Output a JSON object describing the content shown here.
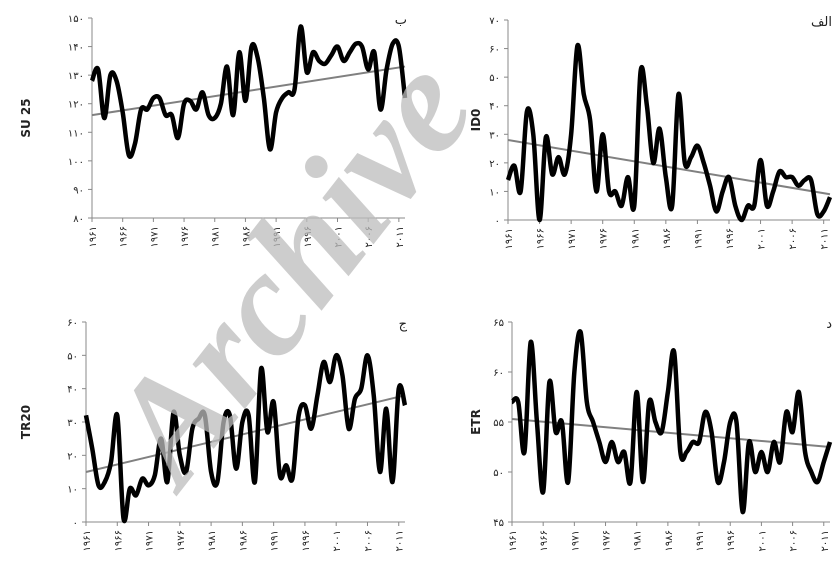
{
  "watermark": "Archive",
  "chart_data": [
    {
      "type": "line",
      "panel_label": "ب",
      "y_label": "SU 25",
      "x": [
        1961,
        1962,
        1963,
        1964,
        1965,
        1966,
        1967,
        1968,
        1969,
        1970,
        1971,
        1972,
        1973,
        1974,
        1975,
        1976,
        1977,
        1978,
        1979,
        1980,
        1981,
        1982,
        1983,
        1984,
        1985,
        1986,
        1987,
        1988,
        1989,
        1990,
        1991,
        1992,
        1993,
        1994,
        1995,
        1996,
        1997,
        1998,
        1999,
        2000,
        2001,
        2002,
        2003,
        2004,
        2005,
        2006,
        2007,
        2008,
        2009,
        2010,
        2011,
        2012
      ],
      "series": [
        {
          "color": "#000000",
          "values": [
            128,
            132,
            115,
            130,
            128,
            117,
            102,
            106,
            118,
            118,
            122,
            122,
            116,
            116,
            108,
            120,
            121,
            118,
            124,
            116,
            115,
            120,
            133,
            116,
            138,
            121,
            140,
            136,
            122,
            104,
            117,
            122,
            124,
            125,
            147,
            131,
            138,
            135,
            134,
            137,
            140,
            135,
            138,
            141,
            140,
            132,
            138,
            118,
            132,
            141,
            140,
            122
          ]
        }
      ],
      "trend": {
        "x": [
          1961,
          2012
        ],
        "values": [
          116,
          133
        ],
        "color": "#808080"
      },
      "xlim": [
        1961,
        2012
      ],
      "ylim": [
        80,
        150
      ],
      "xticks": [
        {
          "value": 1961,
          "label": "۱۹۶۱"
        },
        {
          "value": 1966,
          "label": "۱۹۶۶"
        },
        {
          "value": 1971,
          "label": "۱۹۷۱"
        },
        {
          "value": 1976,
          "label": "۱۹۷۶"
        },
        {
          "value": 1981,
          "label": "۱۹۸۱"
        },
        {
          "value": 1986,
          "label": "۱۹۸۶"
        },
        {
          "value": 1991,
          "label": "۱۹۹۱"
        },
        {
          "value": 1996,
          "label": "۱۹۹۶"
        },
        {
          "value": 2001,
          "label": "۲۰۰۱"
        },
        {
          "value": 2006,
          "label": "۲۰۰۶"
        },
        {
          "value": 2011,
          "label": "۲۰۱۱"
        }
      ],
      "yticks": [
        {
          "value": 80,
          "label": "۸۰"
        },
        {
          "value": 90,
          "label": "۹۰"
        },
        {
          "value": 100,
          "label": "۱۰۰"
        },
        {
          "value": 110,
          "label": "۱۱۰"
        },
        {
          "value": 120,
          "label": "۱۲۰"
        },
        {
          "value": 130,
          "label": "۱۳۰"
        },
        {
          "value": 140,
          "label": "۱۴۰"
        },
        {
          "value": 150,
          "label": "۱۵۰"
        }
      ]
    },
    {
      "type": "line",
      "panel_label": "الف",
      "y_label": "ID0",
      "x": [
        1961,
        1962,
        1963,
        1964,
        1965,
        1966,
        1967,
        1968,
        1969,
        1970,
        1971,
        1972,
        1973,
        1974,
        1975,
        1976,
        1977,
        1978,
        1979,
        1980,
        1981,
        1982,
        1983,
        1984,
        1985,
        1986,
        1987,
        1988,
        1989,
        1990,
        1991,
        1992,
        1993,
        1994,
        1995,
        1996,
        1997,
        1998,
        1999,
        2000,
        2001,
        2002,
        2003,
        2004,
        2005,
        2006,
        2007,
        2008,
        2009,
        2010,
        2011,
        2012
      ],
      "series": [
        {
          "color": "#000000",
          "values": [
            14,
            19,
            10,
            38,
            30,
            0,
            29,
            16,
            22,
            16,
            30,
            61,
            44,
            35,
            10,
            30,
            10,
            10,
            5,
            15,
            5,
            52,
            40,
            20,
            32,
            15,
            5,
            44,
            20,
            22,
            26,
            20,
            12,
            3,
            10,
            15,
            5,
            0,
            5,
            5,
            21,
            5,
            10,
            17,
            15,
            15,
            12,
            14,
            14,
            2,
            3,
            8
          ]
        }
      ],
      "trend": {
        "x": [
          1961,
          2012
        ],
        "values": [
          28,
          9
        ],
        "color": "#808080"
      },
      "xlim": [
        1961,
        2012
      ],
      "ylim": [
        0,
        70
      ],
      "xticks": [
        {
          "value": 1961,
          "label": "۱۹۶۱"
        },
        {
          "value": 1966,
          "label": "۱۹۶۶"
        },
        {
          "value": 1971,
          "label": "۱۹۷۱"
        },
        {
          "value": 1976,
          "label": "۱۹۷۶"
        },
        {
          "value": 1981,
          "label": "۱۹۸۱"
        },
        {
          "value": 1986,
          "label": "۱۹۸۶"
        },
        {
          "value": 1991,
          "label": "۱۹۹۱"
        },
        {
          "value": 1996,
          "label": "۱۹۹۶"
        },
        {
          "value": 2001,
          "label": "۲۰۰۱"
        },
        {
          "value": 2006,
          "label": "۲۰۰۶"
        },
        {
          "value": 2011,
          "label": "۲۰۱۱"
        }
      ],
      "yticks": [
        {
          "value": 0,
          "label": "۰"
        },
        {
          "value": 10,
          "label": "۱۰"
        },
        {
          "value": 20,
          "label": "۲۰"
        },
        {
          "value": 30,
          "label": "۳۰"
        },
        {
          "value": 40,
          "label": "۴۰"
        },
        {
          "value": 50,
          "label": "۵۰"
        },
        {
          "value": 60,
          "label": "۶۰"
        },
        {
          "value": 70,
          "label": "۷۰"
        }
      ]
    },
    {
      "type": "line",
      "panel_label": "ج",
      "y_label": "TR20",
      "x": [
        1961,
        1962,
        1963,
        1964,
        1965,
        1966,
        1967,
        1968,
        1969,
        1970,
        1971,
        1972,
        1973,
        1974,
        1975,
        1976,
        1977,
        1978,
        1979,
        1980,
        1981,
        1982,
        1983,
        1984,
        1985,
        1986,
        1987,
        1988,
        1989,
        1990,
        1991,
        1992,
        1993,
        1994,
        1995,
        1996,
        1997,
        1998,
        1999,
        2000,
        2001,
        2002,
        2003,
        2004,
        2005,
        2006,
        2007,
        2008,
        2009,
        2010,
        2011,
        2012
      ],
      "series": [
        {
          "color": "#000000",
          "values": [
            32,
            22,
            11,
            12,
            18,
            32,
            1,
            10,
            8,
            13,
            11,
            14,
            25,
            12,
            33,
            20,
            15,
            28,
            31,
            32,
            15,
            12,
            30,
            32,
            16,
            30,
            32,
            12,
            46,
            27,
            36,
            14,
            17,
            13,
            32,
            35,
            28,
            38,
            48,
            42,
            50,
            44,
            28,
            37,
            40,
            50,
            38,
            15,
            34,
            12,
            40,
            35
          ]
        }
      ],
      "trend": {
        "x": [
          1961,
          2012
        ],
        "values": [
          15,
          38
        ],
        "color": "#808080"
      },
      "xlim": [
        1961,
        2012
      ],
      "ylim": [
        0,
        60
      ],
      "xticks": [
        {
          "value": 1961,
          "label": "۱۹۶۱"
        },
        {
          "value": 1966,
          "label": "۱۹۶۶"
        },
        {
          "value": 1971,
          "label": "۱۹۷۱"
        },
        {
          "value": 1976,
          "label": "۱۹۷۶"
        },
        {
          "value": 1981,
          "label": "۱۹۸۱"
        },
        {
          "value": 1986,
          "label": "۱۹۸۶"
        },
        {
          "value": 1991,
          "label": "۱۹۹۱"
        },
        {
          "value": 1996,
          "label": "۱۹۹۶"
        },
        {
          "value": 2001,
          "label": "۲۰۰۱"
        },
        {
          "value": 2006,
          "label": "۲۰۰۶"
        },
        {
          "value": 2011,
          "label": "۲۰۱۱"
        }
      ],
      "yticks": [
        {
          "value": 0,
          "label": "۰"
        },
        {
          "value": 10,
          "label": "۱۰"
        },
        {
          "value": 20,
          "label": "۲۰"
        },
        {
          "value": 30,
          "label": "۳۰"
        },
        {
          "value": 40,
          "label": "۴۰"
        },
        {
          "value": 50,
          "label": "۵۰"
        },
        {
          "value": 60,
          "label": "۶۰"
        }
      ]
    },
    {
      "type": "line",
      "panel_label": "د",
      "y_label": "ETR",
      "x": [
        1961,
        1962,
        1963,
        1964,
        1965,
        1966,
        1967,
        1968,
        1969,
        1970,
        1971,
        1972,
        1973,
        1974,
        1975,
        1976,
        1977,
        1978,
        1979,
        1980,
        1981,
        1982,
        1983,
        1984,
        1985,
        1986,
        1987,
        1988,
        1989,
        1990,
        1991,
        1992,
        1993,
        1994,
        1995,
        1996,
        1997,
        1998,
        1999,
        2000,
        2001,
        2002,
        2003,
        2004,
        2005,
        2006,
        2007,
        2008,
        2009,
        2010,
        2011,
        2012
      ],
      "series": [
        {
          "color": "#000000",
          "values": [
            57,
            57,
            52,
            63,
            55,
            48,
            59,
            54,
            55,
            49,
            60,
            64,
            57,
            55,
            53,
            51,
            53,
            51,
            52,
            49,
            58,
            49,
            57,
            55,
            54,
            58,
            62,
            52,
            52,
            53,
            53,
            56,
            54,
            49,
            51,
            55,
            55,
            46,
            53,
            50,
            52,
            50,
            53,
            51,
            56,
            54,
            58,
            52,
            50,
            49,
            51,
            53
          ]
        }
      ],
      "trend": {
        "x": [
          1961,
          2012
        ],
        "values": [
          55.3,
          52.5
        ],
        "color": "#808080"
      },
      "xlim": [
        1961,
        2012
      ],
      "ylim": [
        45,
        65
      ],
      "xticks": [
        {
          "value": 1961,
          "label": "۱۹۶۱"
        },
        {
          "value": 1966,
          "label": "۱۹۶۶"
        },
        {
          "value": 1971,
          "label": "۱۹۷۱"
        },
        {
          "value": 1976,
          "label": "۱۹۷۶"
        },
        {
          "value": 1981,
          "label": "۱۹۸۱"
        },
        {
          "value": 1986,
          "label": "۱۹۸۶"
        },
        {
          "value": 1991,
          "label": "۱۹۹۱"
        },
        {
          "value": 1996,
          "label": "۱۹۹۶"
        },
        {
          "value": 2001,
          "label": "۲۰۰۱"
        },
        {
          "value": 2006,
          "label": "۲۰۰۶"
        },
        {
          "value": 2011,
          "label": "۲۰۱۱"
        }
      ],
      "yticks": [
        {
          "value": 45,
          "label": "۴۵"
        },
        {
          "value": 50,
          "label": "۵۰"
        },
        {
          "value": 55,
          "label": "۵۵"
        },
        {
          "value": 60,
          "label": "۶۰"
        },
        {
          "value": 65,
          "label": "۶۵"
        }
      ]
    }
  ]
}
